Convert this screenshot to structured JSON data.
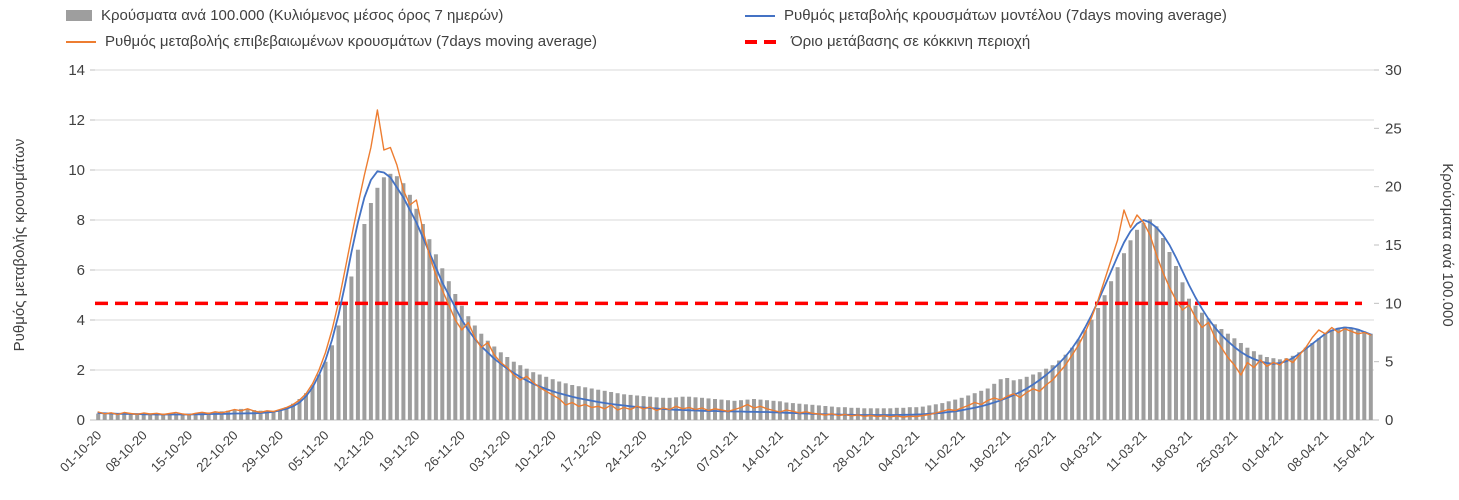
{
  "chart_data": {
    "type": "bar",
    "combo": "bar+line+line+dashed-threshold",
    "x": {
      "tick_labels": [
        "01-10-20",
        "08-10-20",
        "15-10-20",
        "22-10-20",
        "29-10-20",
        "05-11-20",
        "12-11-20",
        "19-11-20",
        "26-11-20",
        "03-12-20",
        "10-12-20",
        "17-12-20",
        "24-12-20",
        "31-12-20",
        "07-01-21",
        "14-01-21",
        "21-01-21",
        "28-01-21",
        "04-02-21",
        "11-02-21",
        "18-02-21",
        "25-02-21",
        "04-03-21",
        "11-03-21",
        "18-03-21",
        "25-03-21",
        "01-04-21",
        "08-04-21",
        "15-04-21"
      ],
      "points_per_tick": 7,
      "n_points": 197
    },
    "axes": {
      "left": {
        "label": "Ρυθμός μεταβολής κρουσμάτων",
        "min": 0,
        "max": 14,
        "ticks": [
          0,
          2,
          4,
          6,
          8,
          10,
          12,
          14
        ]
      },
      "right": {
        "label": "Κρούσματα ανά 100.000",
        "min": 0,
        "max": 30,
        "ticks": [
          0,
          5,
          10,
          15,
          20,
          25,
          30
        ]
      }
    },
    "grid": {
      "horizontal": true,
      "color": "#d9d9d9"
    },
    "series": [
      {
        "id": "cases_per_100k",
        "kind": "bar",
        "axis": "right",
        "color": "#9e9e9e",
        "label": "Κρούσματα ανά 100.000 (Κυλιόμενος μέσος όρος 7 ημερών)",
        "values": [
          0.55,
          0.5,
          0.52,
          0.48,
          0.5,
          0.53,
          0.5,
          0.48,
          0.5,
          0.52,
          0.48,
          0.5,
          0.55,
          0.5,
          0.52,
          0.58,
          0.62,
          0.65,
          0.7,
          0.75,
          0.8,
          0.9,
          0.95,
          0.9,
          0.85,
          0.8,
          0.75,
          0.7,
          0.9,
          1.1,
          1.4,
          1.8,
          2.3,
          3.0,
          3.9,
          5.0,
          6.4,
          8.1,
          10.1,
          12.3,
          14.6,
          16.8,
          18.6,
          19.9,
          20.8,
          21.1,
          20.9,
          20.3,
          19.3,
          18.1,
          16.8,
          15.5,
          14.2,
          13.0,
          11.9,
          10.8,
          9.8,
          8.9,
          8.1,
          7.4,
          6.8,
          6.3,
          5.8,
          5.4,
          5.0,
          4.7,
          4.4,
          4.1,
          3.9,
          3.7,
          3.5,
          3.3,
          3.15,
          3.0,
          2.9,
          2.8,
          2.7,
          2.6,
          2.5,
          2.4,
          2.3,
          2.2,
          2.15,
          2.1,
          2.05,
          2.0,
          1.95,
          1.9,
          1.9,
          1.95,
          2.0,
          2.0,
          1.95,
          1.9,
          1.85,
          1.8,
          1.75,
          1.7,
          1.65,
          1.7,
          1.75,
          1.8,
          1.75,
          1.7,
          1.65,
          1.6,
          1.5,
          1.45,
          1.4,
          1.35,
          1.3,
          1.25,
          1.2,
          1.15,
          1.1,
          1.1,
          1.05,
          1.05,
          1.0,
          1.0,
          1.0,
          1.0,
          1.0,
          1.05,
          1.05,
          1.1,
          1.1,
          1.15,
          1.25,
          1.35,
          1.45,
          1.6,
          1.75,
          1.9,
          2.1,
          2.3,
          2.5,
          2.7,
          3.1,
          3.5,
          3.6,
          3.4,
          3.5,
          3.7,
          3.9,
          4.1,
          4.4,
          4.7,
          5.1,
          5.6,
          6.2,
          6.9,
          7.7,
          8.6,
          9.6,
          10.7,
          11.9,
          13.1,
          14.3,
          15.4,
          16.3,
          16.9,
          17.2,
          16.6,
          15.6,
          14.4,
          13.2,
          11.8,
          10.4,
          9.8,
          9.2,
          8.7,
          8.2,
          7.8,
          7.4,
          7.0,
          6.6,
          6.2,
          5.9,
          5.6,
          5.4,
          5.3,
          5.2,
          5.3,
          5.5,
          5.8,
          6.2,
          6.6,
          7.0,
          7.4,
          7.7,
          7.9,
          8.0,
          7.9,
          7.8,
          7.6,
          7.4
        ]
      },
      {
        "id": "red_threshold",
        "kind": "hline-dashed",
        "axis": "right",
        "color": "#ff0000",
        "label": "Όριο μετάβασης σε κόκκινη περιοχή",
        "value": 10
      },
      {
        "id": "model_rate",
        "kind": "line",
        "axis": "left",
        "color": "#4472c4",
        "label": "Ρυθμός μεταβολής κρουσμάτων μοντέλου (7days moving average)",
        "values": [
          0.28,
          0.27,
          0.26,
          0.25,
          0.25,
          0.24,
          0.24,
          0.23,
          0.23,
          0.22,
          0.22,
          0.22,
          0.22,
          0.22,
          0.22,
          0.23,
          0.23,
          0.24,
          0.24,
          0.25,
          0.25,
          0.26,
          0.26,
          0.27,
          0.27,
          0.28,
          0.3,
          0.33,
          0.38,
          0.45,
          0.55,
          0.7,
          0.95,
          1.3,
          1.8,
          2.4,
          3.2,
          4.2,
          5.4,
          6.7,
          7.9,
          8.9,
          9.6,
          9.95,
          9.9,
          9.7,
          9.3,
          8.9,
          8.4,
          7.9,
          7.3,
          6.7,
          6.1,
          5.5,
          5.0,
          4.5,
          4.0,
          3.6,
          3.25,
          2.95,
          2.7,
          2.45,
          2.25,
          2.05,
          1.88,
          1.72,
          1.58,
          1.45,
          1.34,
          1.24,
          1.15,
          1.07,
          1.0,
          0.93,
          0.87,
          0.82,
          0.77,
          0.72,
          0.68,
          0.64,
          0.61,
          0.58,
          0.55,
          0.52,
          0.5,
          0.48,
          0.46,
          0.44,
          0.42,
          0.41,
          0.4,
          0.39,
          0.38,
          0.37,
          0.36,
          0.36,
          0.35,
          0.35,
          0.34,
          0.34,
          0.33,
          0.33,
          0.32,
          0.32,
          0.31,
          0.3,
          0.29,
          0.28,
          0.27,
          0.26,
          0.25,
          0.24,
          0.23,
          0.22,
          0.22,
          0.21,
          0.21,
          0.2,
          0.2,
          0.2,
          0.2,
          0.2,
          0.2,
          0.2,
          0.21,
          0.21,
          0.22,
          0.23,
          0.25,
          0.27,
          0.29,
          0.32,
          0.35,
          0.39,
          0.44,
          0.49,
          0.55,
          0.62,
          0.7,
          0.79,
          0.89,
          1.0,
          1.12,
          1.26,
          1.42,
          1.6,
          1.8,
          2.02,
          2.27,
          2.55,
          2.87,
          3.25,
          3.7,
          4.2,
          4.75,
          5.35,
          5.95,
          6.55,
          7.1,
          7.55,
          7.85,
          8.0,
          7.9,
          7.7,
          7.4,
          7.0,
          6.5,
          5.95,
          5.4,
          4.9,
          4.45,
          4.05,
          3.7,
          3.4,
          3.15,
          2.92,
          2.72,
          2.56,
          2.44,
          2.34,
          2.28,
          2.25,
          2.28,
          2.35,
          2.48,
          2.65,
          2.85,
          3.05,
          3.25,
          3.45,
          3.58,
          3.66,
          3.7,
          3.68,
          3.62,
          3.52,
          3.42
        ]
      },
      {
        "id": "confirmed_rate",
        "kind": "line",
        "axis": "left",
        "color": "#ed7d31",
        "label": "Ρυθμός μεταβολής επιβεβαιωμένων κρουσμάτων (7days moving average)",
        "values": [
          0.32,
          0.25,
          0.29,
          0.22,
          0.3,
          0.26,
          0.23,
          0.28,
          0.24,
          0.27,
          0.22,
          0.26,
          0.3,
          0.24,
          0.21,
          0.27,
          0.31,
          0.26,
          0.33,
          0.29,
          0.35,
          0.42,
          0.37,
          0.45,
          0.36,
          0.31,
          0.37,
          0.34,
          0.42,
          0.5,
          0.62,
          0.8,
          1.05,
          1.45,
          2.0,
          2.7,
          3.6,
          4.7,
          6.0,
          7.3,
          8.6,
          9.8,
          10.9,
          12.4,
          10.8,
          10.9,
          10.2,
          9.2,
          8.6,
          8.8,
          7.6,
          6.6,
          5.8,
          5.2,
          4.6,
          4.0,
          3.6,
          3.9,
          3.3,
          2.9,
          3.1,
          2.6,
          2.3,
          2.1,
          1.8,
          1.6,
          1.75,
          1.5,
          1.3,
          1.15,
          1.0,
          0.85,
          0.6,
          0.7,
          0.55,
          0.62,
          0.5,
          0.55,
          0.45,
          0.6,
          0.4,
          0.5,
          0.42,
          0.55,
          0.45,
          0.52,
          0.38,
          0.48,
          0.42,
          0.55,
          0.45,
          0.5,
          0.42,
          0.48,
          0.38,
          0.45,
          0.4,
          0.35,
          0.42,
          0.5,
          0.62,
          0.48,
          0.55,
          0.45,
          0.38,
          0.32,
          0.4,
          0.35,
          0.28,
          0.33,
          0.27,
          0.24,
          0.2,
          0.25,
          0.18,
          0.22,
          0.17,
          0.2,
          0.15,
          0.18,
          0.14,
          0.17,
          0.13,
          0.16,
          0.12,
          0.15,
          0.14,
          0.18,
          0.22,
          0.28,
          0.35,
          0.42,
          0.38,
          0.48,
          0.58,
          0.7,
          0.62,
          0.78,
          0.88,
          0.8,
          0.95,
          1.05,
          0.9,
          1.1,
          1.25,
          1.15,
          1.4,
          1.6,
          1.9,
          2.2,
          2.6,
          3.0,
          3.5,
          4.1,
          4.8,
          5.6,
          6.4,
          7.2,
          8.4,
          7.7,
          8.2,
          7.9,
          7.4,
          6.6,
          5.9,
          5.3,
          4.8,
          4.4,
          4.6,
          4.1,
          3.7,
          3.9,
          3.3,
          2.9,
          2.5,
          2.2,
          1.8,
          2.3,
          2.1,
          2.4,
          2.15,
          2.3,
          2.2,
          2.45,
          2.3,
          2.6,
          2.9,
          3.3,
          3.6,
          3.45,
          3.7,
          3.5,
          3.65,
          3.55,
          3.45,
          3.5,
          3.4
        ]
      }
    ],
    "legend_rows": [
      [
        "cases_per_100k",
        "model_rate"
      ],
      [
        "confirmed_rate",
        "red_threshold"
      ]
    ],
    "text_color": "#404040",
    "axis_line_color": "#bfbfbf"
  }
}
